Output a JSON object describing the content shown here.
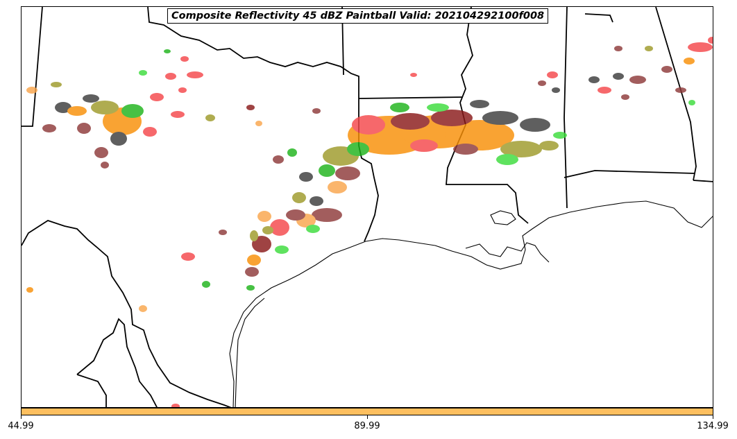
{
  "title": "Composite Reflectivity 45 dBZ Paintball Valid: 202104292100f008",
  "colorbar": {
    "color": "#fdbf5f",
    "ticks": [
      "44.99",
      "89.99",
      "134.99"
    ]
  },
  "colors": {
    "red": "#f5484b",
    "orange": "#f88f07",
    "light_orange": "#f9a64c",
    "green": "#1fb41c",
    "bright_green": "#3ddc3d",
    "dark_gray": "#3c3c3c",
    "maroon": "#8e3a3a",
    "olive": "#9e9a2a",
    "dark_red": "#8b1a1a",
    "brown": "#8a2b10"
  }
}
